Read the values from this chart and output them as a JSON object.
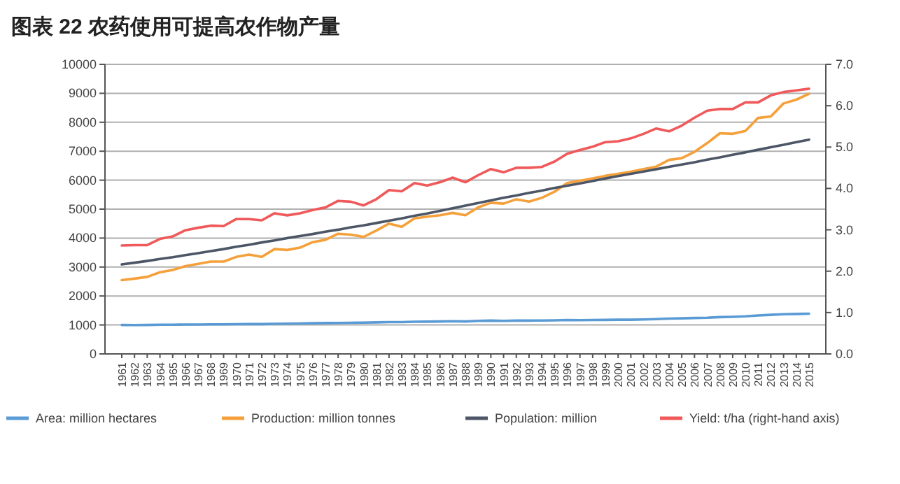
{
  "chart_data": {
    "type": "line",
    "title": "图表 22 农药使用可提高农作物产量",
    "categories": [
      "1961",
      "1962",
      "1963",
      "1964",
      "1965",
      "1966",
      "1967",
      "1968",
      "1969",
      "1970",
      "1971",
      "1972",
      "1973",
      "1974",
      "1975",
      "1976",
      "1977",
      "1978",
      "1979",
      "1980",
      "1981",
      "1982",
      "1983",
      "1984",
      "1985",
      "1986",
      "1987",
      "1988",
      "1989",
      "1990",
      "1991",
      "1992",
      "1993",
      "1994",
      "1995",
      "1996",
      "1997",
      "1998",
      "1999",
      "2000",
      "2001",
      "2002",
      "2003",
      "2004",
      "2005",
      "2006",
      "2007",
      "2008",
      "2009",
      "2010",
      "2011",
      "2012",
      "2013",
      "2014",
      "2015"
    ],
    "series": [
      {
        "name": "Area: million hectares",
        "color": "#5b9bd5",
        "values": [
          1000,
          995,
          1000,
          1010,
          1010,
          1015,
          1015,
          1020,
          1020,
          1025,
          1030,
          1030,
          1040,
          1045,
          1050,
          1060,
          1065,
          1070,
          1075,
          1080,
          1090,
          1100,
          1100,
          1110,
          1115,
          1120,
          1130,
          1120,
          1140,
          1150,
          1140,
          1150,
          1150,
          1155,
          1160,
          1170,
          1165,
          1170,
          1175,
          1180,
          1180,
          1190,
          1200,
          1220,
          1230,
          1240,
          1250,
          1270,
          1280,
          1300,
          1330,
          1350,
          1370,
          1380,
          1390
        ]
      },
      {
        "name": "Production: million tonnes",
        "color": "#f5a03a",
        "values": [
          2550,
          2600,
          2660,
          2820,
          2900,
          3030,
          3110,
          3190,
          3190,
          3350,
          3430,
          3350,
          3620,
          3590,
          3670,
          3860,
          3940,
          4150,
          4120,
          4040,
          4260,
          4500,
          4390,
          4680,
          4740,
          4790,
          4870,
          4790,
          5060,
          5220,
          5190,
          5340,
          5260,
          5390,
          5600,
          5900,
          5980,
          6060,
          6150,
          6220,
          6290,
          6380,
          6470,
          6700,
          6760,
          6980,
          7280,
          7620,
          7600,
          7700,
          8150,
          8200,
          8650,
          8780,
          8980
        ]
      },
      {
        "name": "Population: million",
        "color": "#4d5666",
        "values": [
          3090,
          3150,
          3210,
          3280,
          3340,
          3410,
          3480,
          3550,
          3620,
          3700,
          3770,
          3850,
          3920,
          4000,
          4070,
          4140,
          4220,
          4290,
          4370,
          4440,
          4520,
          4600,
          4680,
          4770,
          4850,
          4940,
          5030,
          5120,
          5210,
          5300,
          5390,
          5470,
          5560,
          5640,
          5730,
          5810,
          5890,
          5970,
          6060,
          6140,
          6220,
          6300,
          6380,
          6460,
          6540,
          6620,
          6710,
          6790,
          6880,
          6960,
          7050,
          7140,
          7220,
          7310,
          7400
        ]
      },
      {
        "name": "Yield: t/ha (right-hand axis)",
        "color": "#f0595a",
        "axis": "y2",
        "values": [
          2.62,
          2.63,
          2.63,
          2.78,
          2.84,
          2.99,
          3.05,
          3.1,
          3.09,
          3.26,
          3.26,
          3.23,
          3.4,
          3.35,
          3.4,
          3.48,
          3.54,
          3.7,
          3.68,
          3.59,
          3.74,
          3.96,
          3.93,
          4.13,
          4.07,
          4.15,
          4.26,
          4.15,
          4.32,
          4.47,
          4.39,
          4.5,
          4.5,
          4.52,
          4.65,
          4.84,
          4.93,
          5.01,
          5.12,
          5.14,
          5.21,
          5.32,
          5.45,
          5.38,
          5.52,
          5.71,
          5.88,
          5.92,
          5.92,
          6.08,
          6.08,
          6.25,
          6.33,
          6.37,
          6.41
        ]
      }
    ],
    "ylim": [
      0,
      10000
    ],
    "yticks": [
      0,
      1000,
      2000,
      3000,
      4000,
      5000,
      6000,
      7000,
      8000,
      9000,
      10000
    ],
    "y2lim": [
      0,
      7
    ],
    "y2ticks": [
      {
        "value": 0,
        "label": "0.0"
      },
      {
        "value": 1,
        "label": "1.0"
      },
      {
        "value": 2,
        "label": "2.0"
      },
      {
        "value": 3,
        "label": "3.0"
      },
      {
        "value": 4,
        "label": "4.0"
      },
      {
        "value": 5,
        "label": "5.0"
      },
      {
        "value": 6,
        "label": "6.0"
      },
      {
        "value": 7,
        "label": "7.0"
      }
    ],
    "grid": "y",
    "legend": "bottom"
  }
}
